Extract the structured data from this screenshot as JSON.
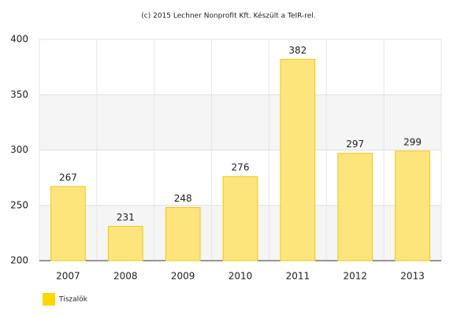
{
  "chart_data": {
    "type": "bar",
    "title": "(c) 2015 Lechner Nonprofit Kft. Készült a TeIR-rel.",
    "categories": [
      "2007",
      "2008",
      "2009",
      "2010",
      "2011",
      "2012",
      "2013"
    ],
    "series": [
      {
        "name": "Tiszalök",
        "color": "#fde57c",
        "values": [
          267,
          231,
          248,
          276,
          382,
          297,
          299
        ]
      }
    ],
    "ylim": [
      200,
      400
    ],
    "yticks": [
      200,
      250,
      300,
      350,
      400
    ],
    "grid": true,
    "legend": "bottom-left"
  }
}
